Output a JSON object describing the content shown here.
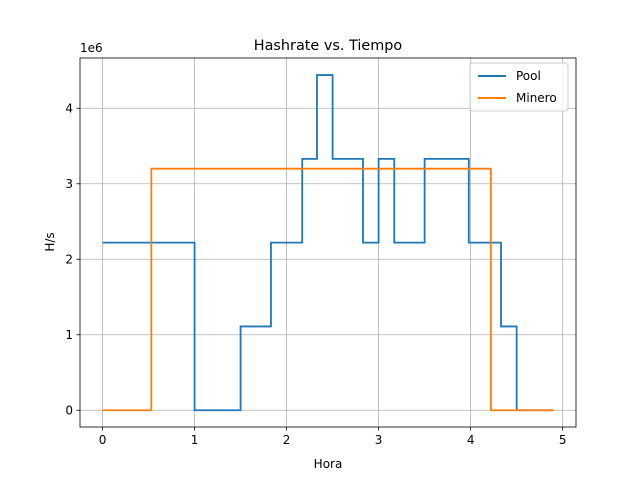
{
  "chart_data": {
    "type": "line",
    "step": true,
    "title": "Hashrate vs. Tiempo",
    "xlabel": "Hora",
    "ylabel": "H/s",
    "y_offset_label": "1e6",
    "y_multiplier": 1000000,
    "xlim": [
      -0.245,
      5.145
    ],
    "ylim": [
      -0.222,
      4.666
    ],
    "xticks": [
      0,
      1,
      2,
      3,
      4,
      5
    ],
    "xtick_labels": [
      "0",
      "1",
      "2",
      "3",
      "4",
      "5"
    ],
    "yticks": [
      0,
      1,
      2,
      3,
      4
    ],
    "ytick_labels": [
      "0",
      "1",
      "2",
      "3",
      "4"
    ],
    "grid": true,
    "legend_position": "top-right",
    "series": [
      {
        "name": "Pool",
        "color": "#1f77b4",
        "x": [
          0,
          1.0,
          1.5,
          1.83,
          2.17,
          2.33,
          2.5,
          2.83,
          3.0,
          3.17,
          3.5,
          3.98,
          4.33,
          4.5,
          4.9
        ],
        "y": [
          2.22,
          0,
          1.11,
          2.22,
          3.33,
          4.44,
          3.33,
          2.22,
          3.33,
          2.22,
          3.33,
          2.22,
          1.11,
          0,
          0
        ]
      },
      {
        "name": "Minero",
        "color": "#ff7f0e",
        "x": [
          0,
          0.53,
          4.22,
          4.9
        ],
        "y": [
          0,
          3.2,
          0,
          0
        ]
      }
    ]
  }
}
